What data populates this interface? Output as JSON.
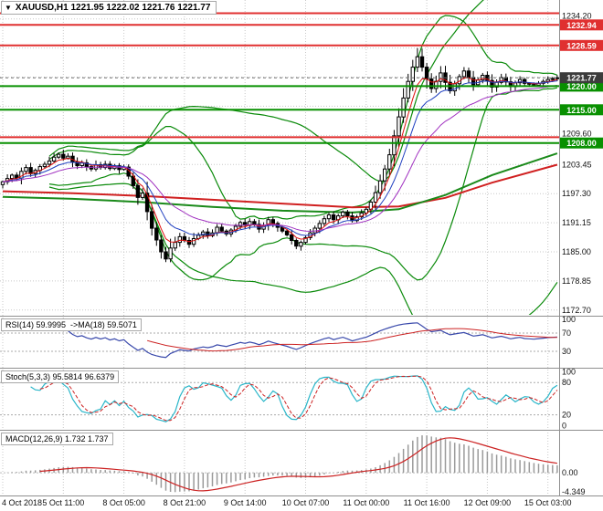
{
  "title": {
    "icon": "▼",
    "text": "XAUUSD,H1 1221.95 1222.02 1221.76 1221.77"
  },
  "colors": {
    "background": "#ffffff",
    "grid": "#c8c8c8",
    "candle_up_fill": "#ffffff",
    "candle_down_fill": "#000000",
    "candle_border": "#000000",
    "axis_text": "#111111",
    "divider": "#8f8f8f"
  },
  "chart_data": {
    "type": "candlestick",
    "symbol": "XAUUSD",
    "timeframe": "H1",
    "ohlc": {
      "open": 1221.95,
      "high": 1222.02,
      "low": 1221.76,
      "close": 1221.77
    },
    "price_axis": {
      "min": 1171.7,
      "max": 1238.0,
      "grid_prices": [
        1172.7,
        1178.85,
        1185.0,
        1191.15,
        1197.3,
        1203.45,
        1209.6,
        1215.75,
        1221.9,
        1228.05,
        1234.2
      ],
      "gray_labels": [
        {
          "price": 1234.2,
          "text": "1234.20"
        },
        {
          "price": 1209.6,
          "text": "1209.60"
        },
        {
          "price": 1203.45,
          "text": "1203.45"
        },
        {
          "price": 1197.3,
          "text": "1197.30"
        },
        {
          "price": 1191.15,
          "text": "1191.15"
        },
        {
          "price": 1185.0,
          "text": "1185.00"
        },
        {
          "price": 1178.85,
          "text": "1178.85"
        },
        {
          "price": 1172.7,
          "text": "1172.70"
        }
      ]
    },
    "time_labels": [
      {
        "bar": 0,
        "text": "4 Oct 2018"
      },
      {
        "bar": 13,
        "text": "5 Oct 11:00"
      },
      {
        "bar": 26,
        "text": "8 Oct 05:00"
      },
      {
        "bar": 39,
        "text": "8 Oct 21:00"
      },
      {
        "bar": 52,
        "text": "9 Oct 14:00"
      },
      {
        "bar": 65,
        "text": "10 Oct 07:00"
      },
      {
        "bar": 78,
        "text": "11 Oct 00:00"
      },
      {
        "bar": 91,
        "text": "11 Oct 16:00"
      },
      {
        "bar": 104,
        "text": "12 Oct 09:00"
      },
      {
        "bar": 117,
        "text": "15 Oct 03:00"
      }
    ],
    "candles": {
      "first_open": 1199.2,
      "wick_base": 0.3,
      "closes": [
        1199.8,
        1200.5,
        1201.2,
        1200.6,
        1202.0,
        1202.8,
        1201.5,
        1202.2,
        1203.0,
        1203.5,
        1204.2,
        1205.0,
        1205.6,
        1204.8,
        1205.2,
        1204.0,
        1203.2,
        1203.8,
        1203.0,
        1202.5,
        1203.4,
        1202.8,
        1203.5,
        1202.6,
        1203.2,
        1202.4,
        1202.9,
        1201.0,
        1199.0,
        1196.5,
        1197.4,
        1193.5,
        1190.0,
        1187.5,
        1185.0,
        1183.5,
        1185.8,
        1187.0,
        1188.2,
        1187.4,
        1186.6,
        1187.8,
        1188.5,
        1189.2,
        1188.4,
        1189.0,
        1190.2,
        1189.4,
        1188.8,
        1189.6,
        1190.4,
        1191.2,
        1190.6,
        1191.4,
        1190.8,
        1189.8,
        1190.6,
        1191.8,
        1191.0,
        1190.2,
        1189.4,
        1188.6,
        1187.4,
        1186.2,
        1187.0,
        1188.0,
        1189.0,
        1190.0,
        1191.0,
        1192.0,
        1192.8,
        1191.8,
        1192.6,
        1193.4,
        1192.6,
        1191.6,
        1192.4,
        1193.2,
        1194.0,
        1195.5,
        1197.5,
        1200.0,
        1202.5,
        1205.5,
        1209.5,
        1213.5,
        1217.5,
        1221.0,
        1224.0,
        1226.2,
        1224.0,
        1221.5,
        1219.5,
        1221.0,
        1222.8,
        1220.8,
        1219.0,
        1220.5,
        1222.0,
        1223.2,
        1221.8,
        1220.3,
        1221.3,
        1222.3,
        1221.2,
        1219.8,
        1220.8,
        1221.8,
        1220.9,
        1219.9,
        1220.7,
        1221.4,
        1220.6,
        1220.4,
        1220.2,
        1220.6,
        1221.0,
        1221.4,
        1221.6,
        1221.77
      ]
    },
    "levels": [
      {
        "price": 1235.4,
        "color": "#e03030",
        "label": ""
      },
      {
        "price": 1232.94,
        "color": "#e03030",
        "label": "1232.94"
      },
      {
        "price": 1228.59,
        "color": "#e03030",
        "label": "1228.59"
      },
      {
        "price": 1220.0,
        "color": "#089000",
        "label": "1220.00"
      },
      {
        "price": 1215.0,
        "color": "#089000",
        "label": "1215.00"
      },
      {
        "price": 1209.2,
        "color": "#e03030",
        "label": ""
      },
      {
        "price": 1208.0,
        "color": "#089000",
        "label": "1208.00"
      }
    ],
    "bid": {
      "price": 1221.77,
      "label": "1221.77",
      "line_color": "#707070",
      "tag_bg": "#3c3c3c"
    },
    "overlays": {
      "fast_mas": [
        {
          "period": 5,
          "color": "#e01010"
        },
        {
          "period": 10,
          "color": "#2040c0"
        },
        {
          "period": 21,
          "color": "#a030c0"
        }
      ],
      "bollinger": [
        {
          "period": 20,
          "dev": 2.0,
          "color": "#0a8a0a"
        },
        {
          "period": 55,
          "dev": 2.5,
          "color": "#0a8a0a"
        }
      ],
      "trend_lines": [
        {
          "color": "#d02020",
          "width": 2,
          "bars": [
            0,
            15,
            30,
            45,
            60,
            75,
            85,
            95,
            105,
            119
          ],
          "prices": [
            1197.8,
            1197.4,
            1196.8,
            1196.0,
            1195.2,
            1194.4,
            1194.6,
            1196.4,
            1199.6,
            1203.4
          ]
        },
        {
          "color": "#1a8a1a",
          "width": 2,
          "bars": [
            0,
            15,
            30,
            45,
            60,
            75,
            85,
            95,
            105,
            119
          ],
          "prices": [
            1196.6,
            1196.2,
            1195.5,
            1194.5,
            1193.7,
            1193.3,
            1194.0,
            1197.0,
            1201.2,
            1205.8
          ]
        }
      ]
    },
    "rsi": {
      "label": "RSI(14) 59.9995  ->MA(18) 59.5071",
      "period": 14,
      "ma_period": 18,
      "value": 59.9995,
      "ma_value": 59.5071,
      "range": [
        -4,
        104
      ],
      "axis_labels": [
        100,
        70,
        30
      ],
      "dashed_levels": [
        70,
        30
      ],
      "line_color": "#3949ab",
      "ma_color": "#cc2222"
    },
    "stoch": {
      "label": "Stoch(5,3,3) 95.5814 96.6379",
      "k_period": 5,
      "slowing": 3,
      "d_period": 3,
      "value_k": 95.5814,
      "value_d": 96.6379,
      "range": [
        -6,
        104
      ],
      "axis_labels": [
        100,
        80,
        20,
        0
      ],
      "dashed_levels": [
        80,
        20
      ],
      "k_color": "#2ab6c9",
      "d_color": "#cc2222"
    },
    "macd": {
      "label": "MACD(12,26,9) 1.732 1.737",
      "fast": 12,
      "slow": 26,
      "signal": 9,
      "value": 1.732,
      "signal_value": 1.737,
      "range": [
        -5.2,
        9.4
      ],
      "axis_labels": [
        {
          "v": 0,
          "text": "0.00"
        },
        {
          "v": -4.349,
          "text": "-4.349"
        }
      ],
      "hist_color": "#9a9a9a",
      "signal_color": "#cc2222"
    }
  }
}
